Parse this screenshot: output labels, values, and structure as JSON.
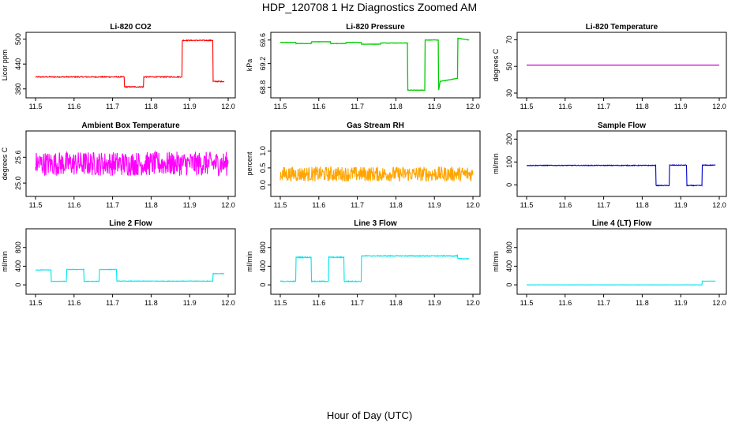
{
  "figure": {
    "title": "HDP_120708  1 Hz Diagnostics Zoomed AM",
    "xlabel": "Hour of Day (UTC)"
  },
  "chart_data": [
    {
      "type": "line",
      "title": "Li-820 CO2",
      "ylabel": "Licor ppm",
      "color": "#ff0000",
      "xlim": [
        11.5,
        12.0
      ],
      "ylim": [
        370,
        505
      ],
      "xticks": [
        11.5,
        11.6,
        11.7,
        11.8,
        11.9,
        12.0
      ],
      "xtick_labels": [
        "11.5",
        "11.6",
        "11.7",
        "11.8",
        "11.9",
        "12.0"
      ],
      "yticks": [
        380,
        440,
        500
      ],
      "ytick_labels": [
        "380",
        "440",
        "500"
      ],
      "noise": 1.2,
      "x": [
        11.5,
        11.73,
        11.731,
        11.78,
        11.781,
        11.88,
        11.881,
        11.96,
        11.961,
        11.99
      ],
      "y": [
        409,
        409,
        385,
        385,
        409,
        409,
        497,
        497,
        398,
        398
      ]
    },
    {
      "type": "line",
      "title": "Li-820 Pressure",
      "ylabel": "kPa",
      "color": "#00cc00",
      "xlim": [
        11.5,
        12.0
      ],
      "ylim": [
        68.7,
        69.65
      ],
      "xticks": [
        11.5,
        11.6,
        11.7,
        11.8,
        11.9,
        12.0
      ],
      "xtick_labels": [
        "11.5",
        "11.6",
        "11.7",
        "11.8",
        "11.9",
        "12.0"
      ],
      "yticks": [
        68.8,
        69.2,
        69.6
      ],
      "ytick_labels": [
        "68.8",
        "69.2",
        "69.6"
      ],
      "noise": 0.003,
      "x": [
        11.5,
        11.54,
        11.541,
        11.58,
        11.581,
        11.63,
        11.631,
        11.67,
        11.671,
        11.71,
        11.711,
        11.76,
        11.761,
        11.83,
        11.831,
        11.875,
        11.876,
        11.91,
        11.911,
        11.915,
        11.916,
        11.96,
        11.961,
        11.99
      ],
      "y": [
        69.56,
        69.56,
        69.54,
        69.54,
        69.57,
        69.57,
        69.54,
        69.54,
        69.56,
        69.56,
        69.53,
        69.53,
        69.55,
        69.55,
        68.75,
        68.75,
        69.6,
        69.6,
        68.75,
        68.9,
        68.9,
        68.95,
        69.63,
        69.6
      ]
    },
    {
      "type": "line",
      "title": "Li-820 Temperature",
      "ylabel": "degrees C",
      "color": "#cc00cc",
      "xlim": [
        11.5,
        12.0
      ],
      "ylim": [
        30,
        72
      ],
      "xticks": [
        11.5,
        11.6,
        11.7,
        11.8,
        11.9,
        12.0
      ],
      "xtick_labels": [
        "11.5",
        "11.6",
        "11.7",
        "11.8",
        "11.9",
        "12.0"
      ],
      "yticks": [
        30,
        50,
        70
      ],
      "ytick_labels": [
        "30",
        "50",
        "70"
      ],
      "noise": 0,
      "x": [
        11.5,
        12.0
      ],
      "y": [
        51,
        51
      ]
    },
    {
      "type": "line",
      "title": "Ambient Box Temperature",
      "ylabel": "degrees C",
      "color": "#ff00ff",
      "xlim": [
        11.5,
        12.0
      ],
      "ylim": [
        24.8,
        26.1
      ],
      "xticks": [
        11.5,
        11.6,
        11.7,
        11.8,
        11.9,
        12.0
      ],
      "xtick_labels": [
        "11.5",
        "11.6",
        "11.7",
        "11.8",
        "11.9",
        "12.0"
      ],
      "yticks": [
        25.0,
        25.6
      ],
      "ytick_labels": [
        "25.0",
        "25.6"
      ],
      "noise": 0.28,
      "x": [
        11.5,
        12.0
      ],
      "y": [
        25.45,
        25.45
      ]
    },
    {
      "type": "line",
      "title": "Gas Stream RH",
      "ylabel": "percent",
      "color": "#ffa500",
      "xlim": [
        11.5,
        12.0
      ],
      "ylim": [
        -0.2,
        1.45
      ],
      "xticks": [
        11.5,
        11.6,
        11.7,
        11.8,
        11.9,
        12.0
      ],
      "xtick_labels": [
        "11.5",
        "11.6",
        "11.7",
        "11.8",
        "11.9",
        "12.0"
      ],
      "yticks": [
        0.0,
        0.5,
        1.0
      ],
      "ytick_labels": [
        "0.0",
        "0.5",
        "1.0"
      ],
      "noise": 0.22,
      "x": [
        11.5,
        12.0
      ],
      "y": [
        0.32,
        0.32
      ]
    },
    {
      "type": "line",
      "title": "Sample Flow",
      "ylabel": "ml/min",
      "color": "#0000cc",
      "xlim": [
        11.5,
        12.0
      ],
      "ylim": [
        -30,
        215
      ],
      "xticks": [
        11.5,
        11.6,
        11.7,
        11.8,
        11.9,
        12.0
      ],
      "xtick_labels": [
        "11.5",
        "11.6",
        "11.7",
        "11.8",
        "11.9",
        "12.0"
      ],
      "yticks": [
        0,
        100,
        200
      ],
      "ytick_labels": [
        "0",
        "100",
        "200"
      ],
      "noise": 1.5,
      "x": [
        11.5,
        11.835,
        11.836,
        11.87,
        11.871,
        11.915,
        11.916,
        11.955,
        11.956,
        11.99
      ],
      "y": [
        85,
        85,
        -3,
        -3,
        86,
        86,
        -3,
        -3,
        86,
        86
      ]
    },
    {
      "type": "line",
      "title": "Line 2 Flow",
      "ylabel": "ml/min",
      "color": "#00e5ee",
      "xlim": [
        11.5,
        12.0
      ],
      "ylim": [
        -100,
        1100
      ],
      "xticks": [
        11.5,
        11.6,
        11.7,
        11.8,
        11.9,
        12.0
      ],
      "xtick_labels": [
        "11.5",
        "11.6",
        "11.7",
        "11.8",
        "11.9",
        "12.0"
      ],
      "yticks": [
        0,
        400,
        800
      ],
      "ytick_labels": [
        "0",
        "400",
        "800"
      ],
      "noise": 6,
      "x": [
        11.5,
        11.54,
        11.541,
        11.58,
        11.581,
        11.625,
        11.626,
        11.665,
        11.666,
        11.71,
        11.711,
        11.96,
        11.961,
        11.99
      ],
      "y": [
        320,
        320,
        75,
        75,
        330,
        330,
        75,
        75,
        330,
        330,
        80,
        80,
        240,
        240
      ]
    },
    {
      "type": "line",
      "title": "Line 3 Flow",
      "ylabel": "ml/min",
      "color": "#00e5ee",
      "xlim": [
        11.5,
        12.0
      ],
      "ylim": [
        -100,
        1100
      ],
      "xticks": [
        11.5,
        11.6,
        11.7,
        11.8,
        11.9,
        12.0
      ],
      "xtick_labels": [
        "11.5",
        "11.6",
        "11.7",
        "11.8",
        "11.9",
        "12.0"
      ],
      "yticks": [
        0,
        400,
        800
      ],
      "ytick_labels": [
        "0",
        "400",
        "800"
      ],
      "noise": 10,
      "x": [
        11.5,
        11.54,
        11.541,
        11.58,
        11.581,
        11.625,
        11.626,
        11.665,
        11.666,
        11.71,
        11.711,
        11.96,
        11.961,
        11.99
      ],
      "y": [
        75,
        75,
        590,
        590,
        75,
        75,
        590,
        590,
        75,
        75,
        620,
        620,
        560,
        560
      ]
    },
    {
      "type": "line",
      "title": "Line 4 (LT) Flow",
      "ylabel": "ml/min",
      "color": "#00e5ee",
      "xlim": [
        11.5,
        12.0
      ],
      "ylim": [
        -100,
        1100
      ],
      "xticks": [
        11.5,
        11.6,
        11.7,
        11.8,
        11.9,
        12.0
      ],
      "xtick_labels": [
        "11.5",
        "11.6",
        "11.7",
        "11.8",
        "11.9",
        "12.0"
      ],
      "yticks": [
        0,
        400,
        800
      ],
      "ytick_labels": [
        "0",
        "400",
        "800"
      ],
      "noise": 2,
      "x": [
        11.5,
        11.955,
        11.956,
        11.99
      ],
      "y": [
        0,
        0,
        80,
        80
      ]
    }
  ]
}
